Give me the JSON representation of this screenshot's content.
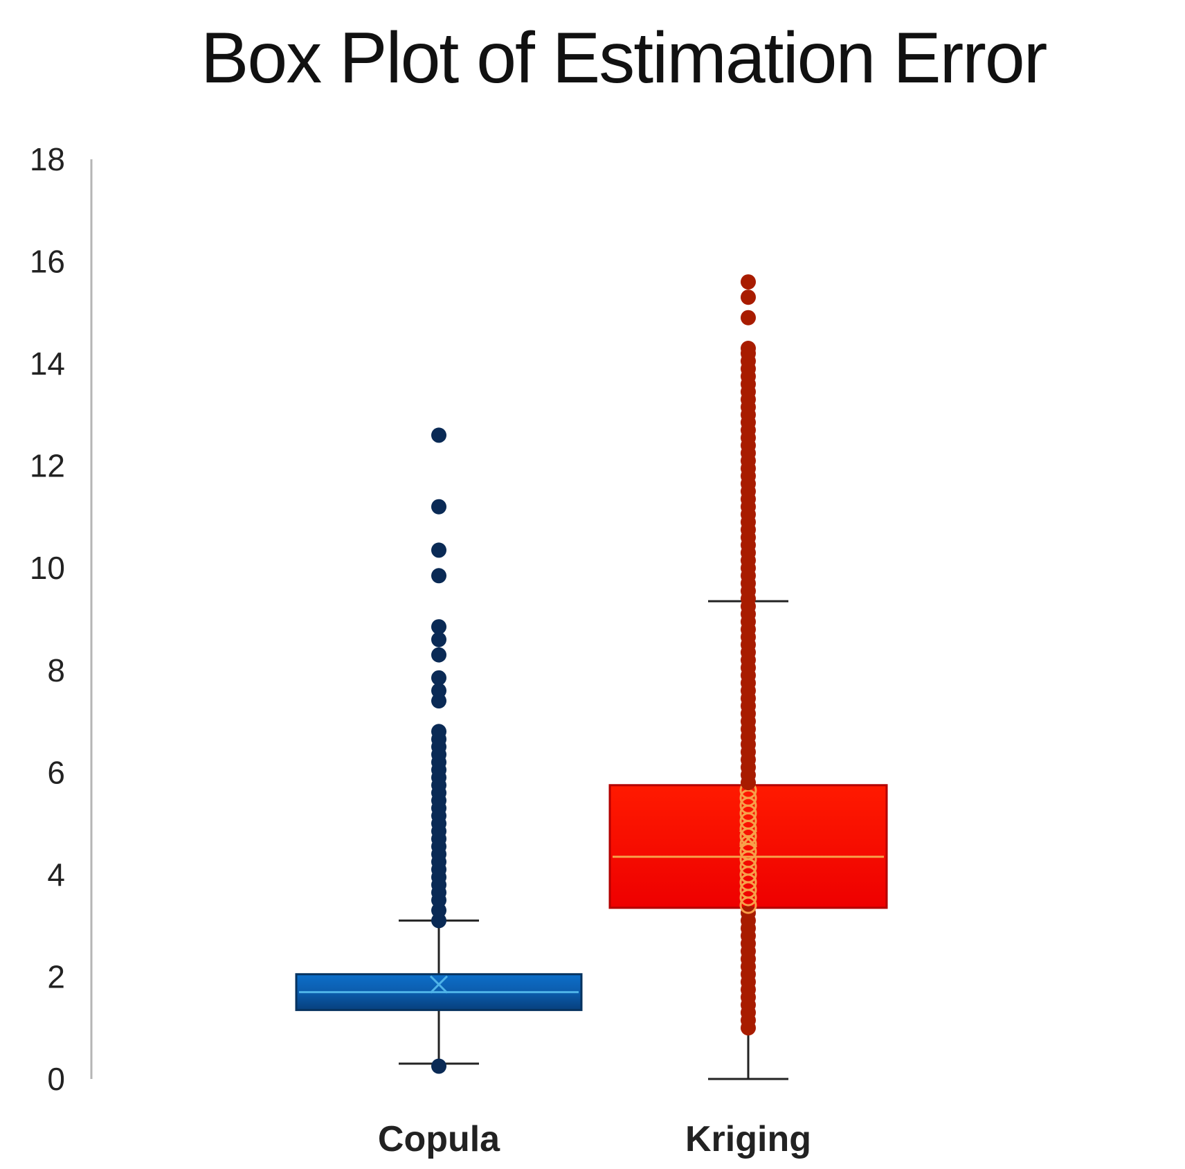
{
  "chart_data": {
    "type": "box",
    "title": "Box Plot of Estimation Error",
    "xlabel": "",
    "ylabel": "",
    "ylim": [
      0,
      18
    ],
    "yticks": [
      "0",
      "2",
      "4",
      "6",
      "8",
      "10",
      "12",
      "14",
      "16",
      "18"
    ],
    "grid": false,
    "legend": "none",
    "categories": [
      "Copula",
      "Kriging"
    ],
    "series": [
      {
        "category": "Copula",
        "color": "#0b5cad",
        "edge_color": "#06325f",
        "point_color": "#0a2a55",
        "median_color": "#4fb3e8",
        "whisker_low": 0.3,
        "q1": 1.35,
        "median": 1.7,
        "q3": 2.05,
        "whisker_high": 3.1,
        "mean": 1.85,
        "points": [
          0.25,
          3.1,
          3.3,
          3.5,
          3.65,
          3.8,
          3.95,
          4.1,
          4.25,
          4.4,
          4.55,
          4.7,
          4.85,
          5.0,
          5.15,
          5.3,
          5.45,
          5.6,
          5.75,
          5.9,
          6.05,
          6.2,
          6.35,
          6.5,
          6.65,
          6.8,
          7.4,
          7.6,
          7.85,
          8.3,
          8.6,
          8.85,
          9.85,
          10.35,
          11.2,
          12.6
        ]
      },
      {
        "category": "Kriging",
        "color": "#ff0000",
        "edge_color": "#b30000",
        "point_color": "#a81c00",
        "median_color": "#f7a04a",
        "whisker_low": 0.0,
        "q1": 3.35,
        "median": 4.35,
        "q3": 5.75,
        "whisker_high": 9.35,
        "mean": 4.7,
        "points": [
          1.0,
          1.15,
          1.3,
          1.45,
          1.6,
          1.75,
          1.9,
          2.05,
          2.2,
          2.35,
          2.5,
          2.65,
          2.8,
          2.95,
          3.1,
          3.25,
          3.4,
          3.55,
          3.7,
          3.85,
          4.0,
          4.15,
          4.3,
          4.45,
          4.6,
          4.75,
          4.9,
          5.05,
          5.2,
          5.35,
          5.5,
          5.65,
          5.8,
          5.95,
          6.1,
          6.25,
          6.4,
          6.55,
          6.7,
          6.85,
          7.0,
          7.15,
          7.3,
          7.45,
          7.6,
          7.75,
          7.9,
          8.05,
          8.2,
          8.35,
          8.5,
          8.65,
          8.8,
          8.95,
          9.1,
          9.25,
          9.4,
          9.55,
          9.7,
          9.85,
          10.0,
          10.15,
          10.3,
          10.45,
          10.6,
          10.75,
          10.9,
          11.05,
          11.2,
          11.35,
          11.5,
          11.65,
          11.8,
          11.95,
          12.1,
          12.25,
          12.4,
          12.55,
          12.7,
          12.85,
          13.0,
          13.15,
          13.3,
          13.45,
          13.6,
          13.75,
          13.9,
          14.05,
          14.2,
          14.3,
          14.9,
          15.3,
          15.6
        ]
      }
    ]
  }
}
